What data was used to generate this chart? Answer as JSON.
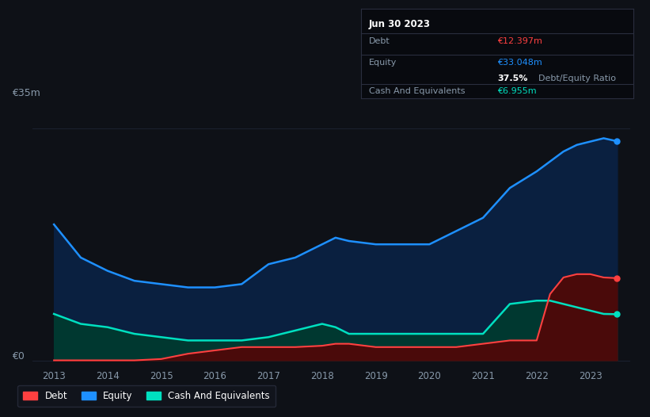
{
  "bg_color": "#0e1117",
  "plot_bg_color": "#0e1117",
  "tooltip": {
    "date": "Jun 30 2023",
    "debt_label": "Debt",
    "debt_value": "€12.397m",
    "equity_label": "Equity",
    "equity_value": "€33.048m",
    "ratio_value": "37.5%",
    "ratio_label": "Debt/Equity Ratio",
    "cash_label": "Cash And Equivalents",
    "cash_value": "€6.955m"
  },
  "ylabel_top": "€35m",
  "ylabel_bottom": "€0",
  "xlim_start": 2012.6,
  "xlim_end": 2023.75,
  "ylim_bottom": -1,
  "ylim_top": 38,
  "xticks": [
    2013,
    2014,
    2015,
    2016,
    2017,
    2018,
    2019,
    2020,
    2021,
    2022,
    2023
  ],
  "grid_color": "#1e2535",
  "years": [
    2013.0,
    2013.5,
    2014.0,
    2014.5,
    2015.0,
    2015.5,
    2016.0,
    2016.5,
    2017.0,
    2017.5,
    2018.0,
    2018.25,
    2018.5,
    2019.0,
    2019.5,
    2020.0,
    2020.5,
    2021.0,
    2021.5,
    2022.0,
    2022.25,
    2022.5,
    2022.75,
    2023.0,
    2023.25,
    2023.5
  ],
  "equity": [
    20.5,
    15.5,
    13.5,
    12.0,
    11.5,
    11.0,
    11.0,
    11.5,
    14.5,
    15.5,
    17.5,
    18.5,
    18.0,
    17.5,
    17.5,
    17.5,
    19.5,
    21.5,
    26.0,
    28.5,
    30.0,
    31.5,
    32.5,
    33.0,
    33.5,
    33.048
  ],
  "debt": [
    0.0,
    0.0,
    0.0,
    0.0,
    0.2,
    1.0,
    1.5,
    2.0,
    2.0,
    2.0,
    2.2,
    2.5,
    2.5,
    2.0,
    2.0,
    2.0,
    2.0,
    2.5,
    3.0,
    3.0,
    10.0,
    12.5,
    13.0,
    13.0,
    12.5,
    12.397
  ],
  "cash": [
    7.0,
    5.5,
    5.0,
    4.0,
    3.5,
    3.0,
    3.0,
    3.0,
    3.5,
    4.5,
    5.5,
    5.0,
    4.0,
    4.0,
    4.0,
    4.0,
    4.0,
    4.0,
    8.5,
    9.0,
    9.0,
    8.5,
    8.0,
    7.5,
    7.0,
    6.955
  ],
  "equity_color": "#1e90ff",
  "equity_fill_color": "#0a2040",
  "debt_color": "#ff4040",
  "debt_fill_color": "#4a0a0a",
  "cash_color": "#00e0c0",
  "cash_fill_color": "#003830",
  "legend_items": [
    "Debt",
    "Equity",
    "Cash And Equivalents"
  ],
  "legend_colors": [
    "#ff4040",
    "#1e90ff",
    "#00e0c0"
  ]
}
